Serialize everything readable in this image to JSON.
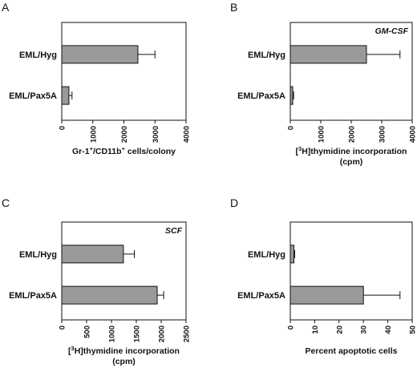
{
  "chart_data": [
    {
      "panel": "A",
      "type": "bar",
      "orientation": "horizontal",
      "annotation": "",
      "categories": [
        "EML/Hyg",
        "EML/Pax5A"
      ],
      "values": [
        2450,
        230
      ],
      "errors": [
        550,
        100
      ],
      "xlim": [
        0,
        4000
      ],
      "xticks": [
        "0",
        "1000",
        "2000",
        "3000",
        "4000"
      ],
      "xlabel_lines": [
        [
          {
            "t": "Gr-1"
          },
          {
            "t": "+",
            "sup": true
          },
          {
            "t": "/CD11b"
          },
          {
            "t": "+",
            "sup": true
          },
          {
            "t": " cells/colony"
          }
        ]
      ],
      "grid": false
    },
    {
      "panel": "B",
      "type": "bar",
      "orientation": "horizontal",
      "annotation": "GM-CSF",
      "categories": [
        "EML/Hyg",
        "EML/Pax5A"
      ],
      "values": [
        2500,
        80
      ],
      "errors": [
        1100,
        30
      ],
      "xlim": [
        0,
        4000
      ],
      "xticks": [
        "0",
        "1000",
        "2000",
        "3000",
        "4000"
      ],
      "xlabel_lines": [
        [
          {
            "t": "["
          },
          {
            "t": "3",
            "sup": true
          },
          {
            "t": "H]thymidine incorporation"
          }
        ],
        [
          {
            "t": "(cpm)"
          }
        ]
      ],
      "grid": false
    },
    {
      "panel": "C",
      "type": "bar",
      "orientation": "horizontal",
      "annotation": "SCF",
      "categories": [
        "EML/Hyg",
        "EML/Pax5A"
      ],
      "values": [
        1240,
        1920
      ],
      "errors": [
        220,
        130
      ],
      "xlim": [
        0,
        2500
      ],
      "xticks": [
        "0",
        "500",
        "1000",
        "1500",
        "2000",
        "2500"
      ],
      "xlabel_lines": [
        [
          {
            "t": "["
          },
          {
            "t": "3",
            "sup": true
          },
          {
            "t": "H]thymidine incorporation"
          }
        ],
        [
          {
            "t": "(cpm)"
          }
        ]
      ],
      "grid": false
    },
    {
      "panel": "D",
      "type": "bar",
      "orientation": "horizontal",
      "annotation": "",
      "categories": [
        "EML/Hyg",
        "EML/Pax5A"
      ],
      "values": [
        1.5,
        30
      ],
      "errors": [
        0.3,
        15
      ],
      "xlim": [
        0,
        50
      ],
      "xticks": [
        "0",
        "10",
        "20",
        "30",
        "40",
        "50"
      ],
      "xlabel_lines": [
        [
          {
            "t": "Percent apoptotic cells"
          }
        ]
      ],
      "grid": false
    }
  ]
}
